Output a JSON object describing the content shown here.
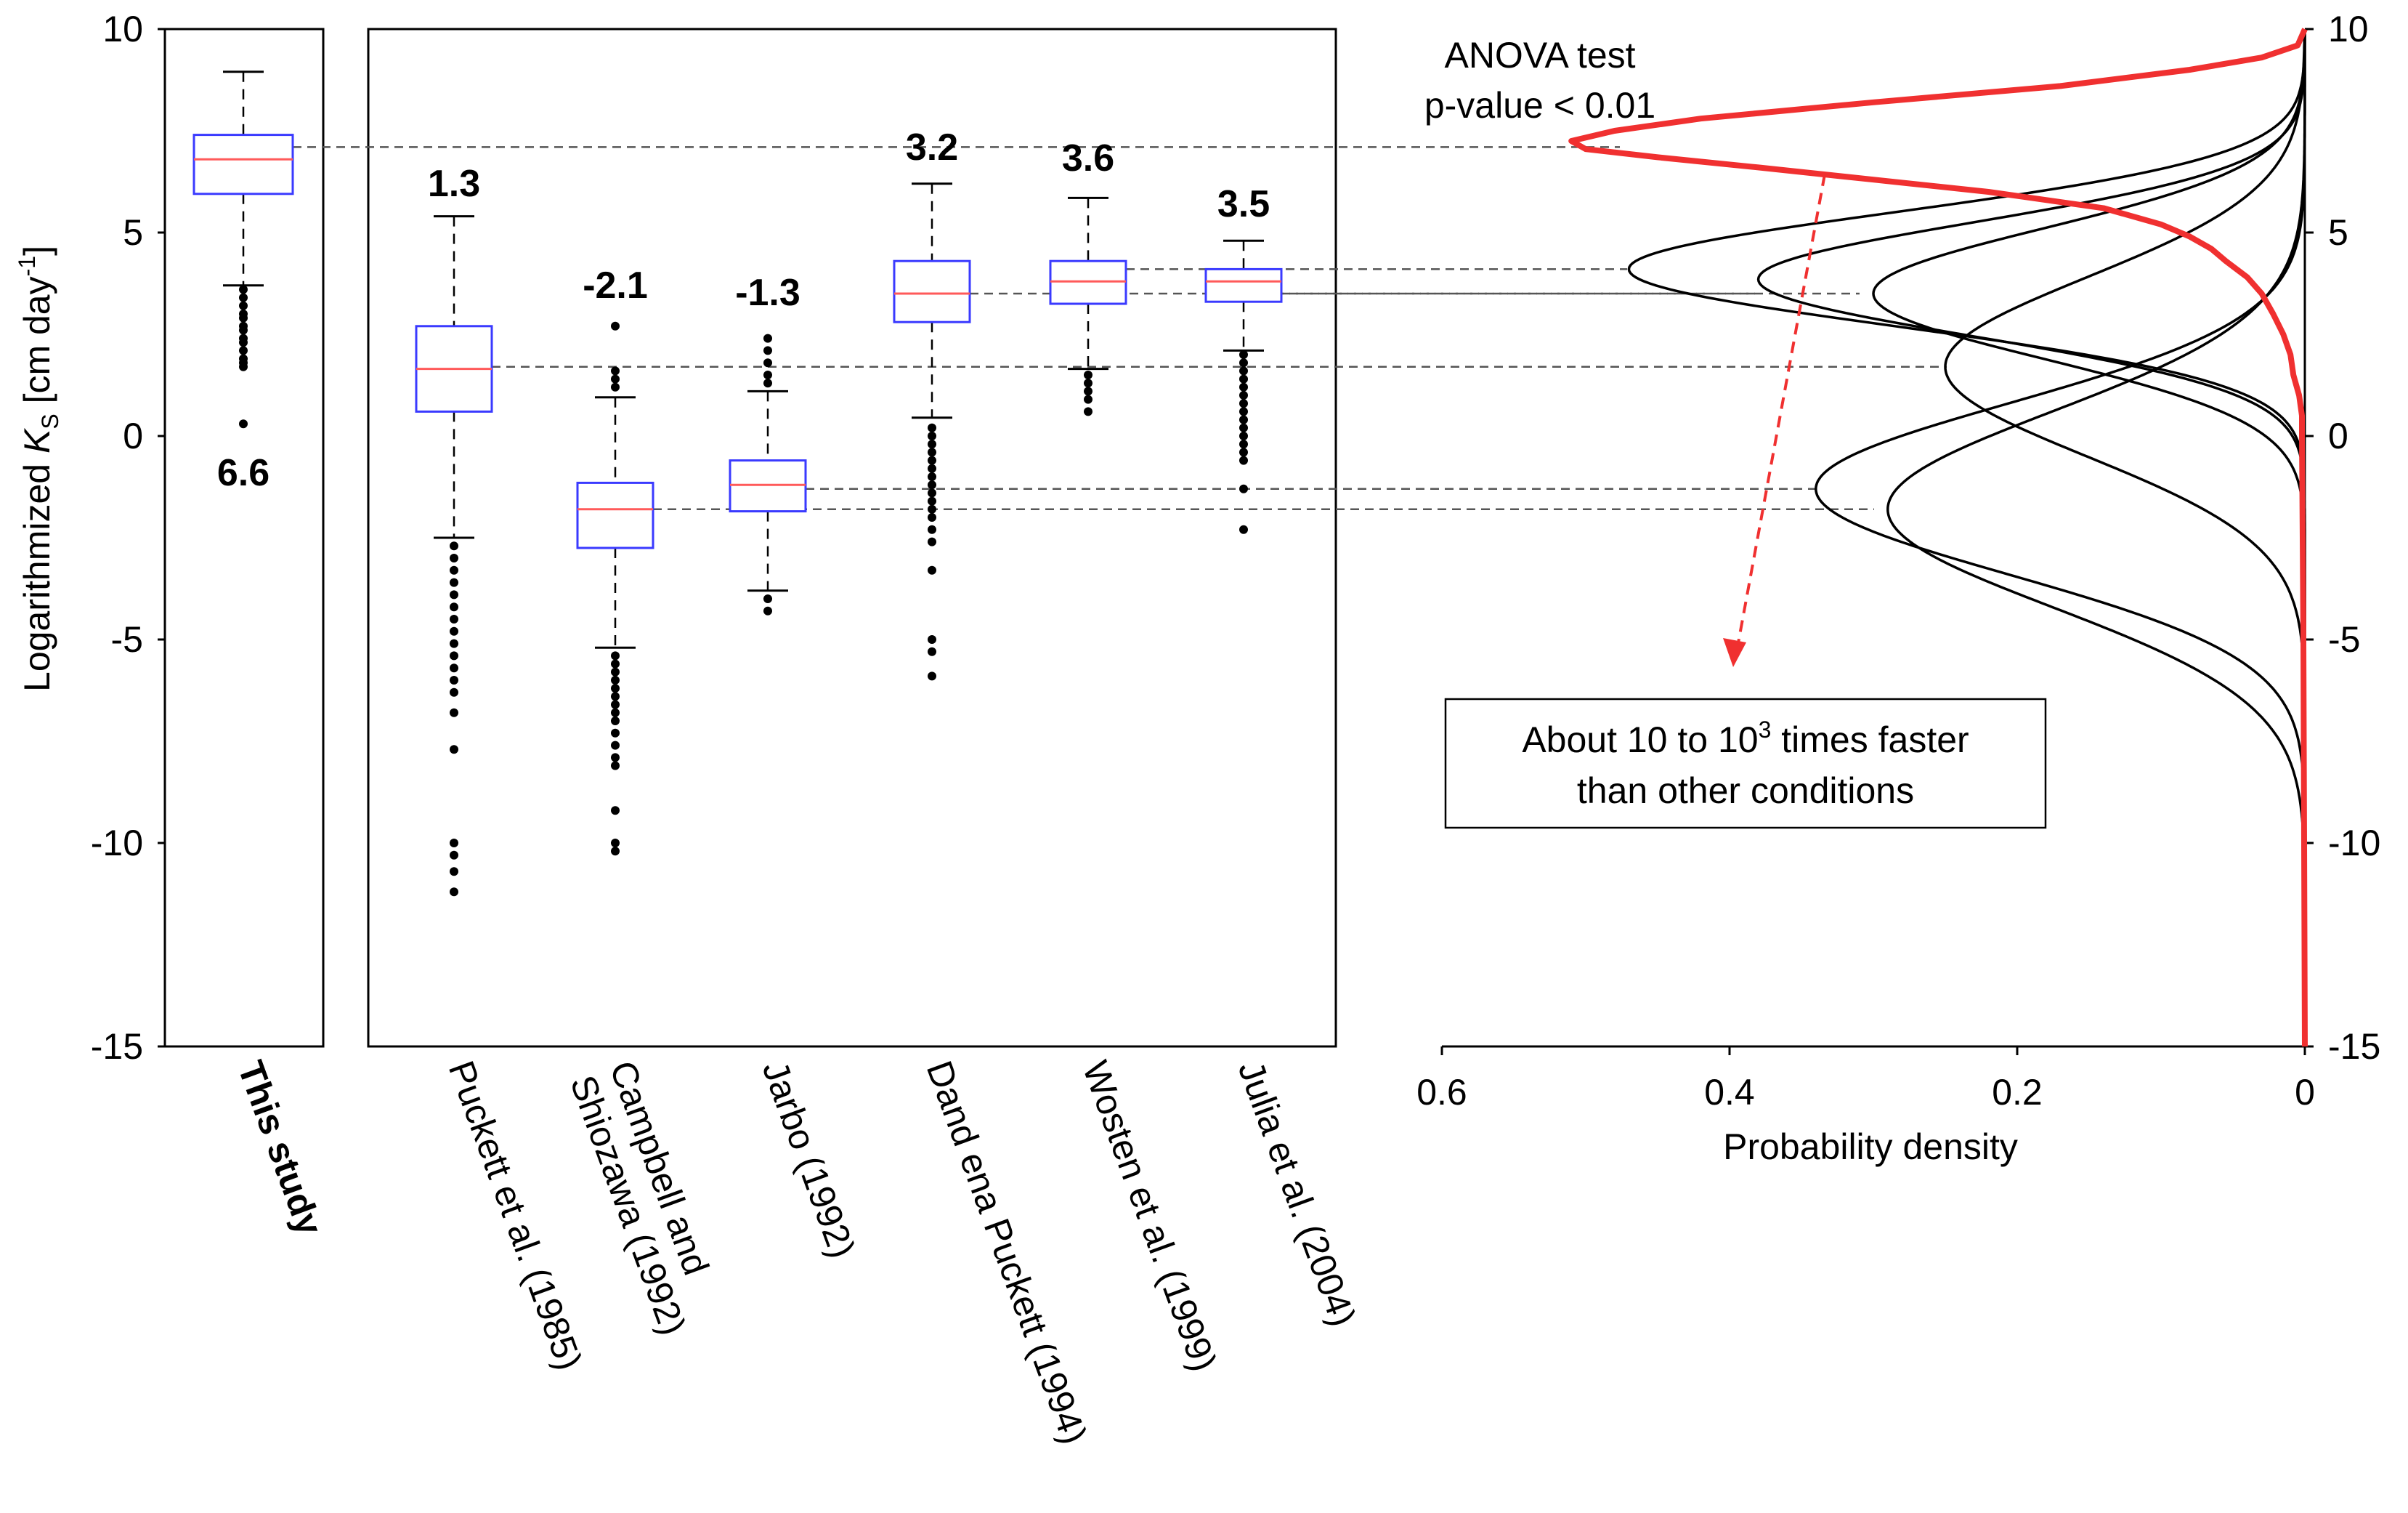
{
  "chart_data": [
    {
      "type": "box",
      "panel": "this-study",
      "ylabel_prefix": "Logarithmized ",
      "ylabel_var": "K",
      "ylabel_sub": "S",
      "ylabel_unit": " [cm day",
      "ylabel_exp": "-1",
      "ylabel_close": "]",
      "ylim": [
        -15,
        10
      ],
      "yticks": [
        "10",
        "5",
        "0",
        "-5",
        "-10",
        "-15"
      ],
      "ytick_values": [
        10,
        5,
        0,
        -5,
        -10,
        -15
      ],
      "grid": false,
      "boxes": [
        {
          "label": "This study",
          "bold": true,
          "mean_label": "6.6",
          "median": 6.8,
          "q1": 5.95,
          "q3": 7.4,
          "whisker_low": 3.7,
          "whisker_high": 8.95,
          "outliers": [
            3.6,
            3.4,
            3.2,
            3.0,
            2.9,
            2.7,
            2.6,
            2.4,
            2.3,
            2.1,
            1.9,
            1.8,
            1.7,
            0.3
          ]
        }
      ]
    },
    {
      "type": "box",
      "panel": "literature",
      "ylim": [
        -15,
        10
      ],
      "boxes": [
        {
          "label": "Puckett et al. (1985)",
          "mean_label": "1.3",
          "median": 1.65,
          "q1": 0.6,
          "q3": 2.7,
          "whisker_low": -2.5,
          "whisker_high": 5.4,
          "outliers": [
            -2.7,
            -3.0,
            -3.3,
            -3.6,
            -3.9,
            -4.2,
            -4.5,
            -4.8,
            -5.1,
            -5.4,
            -5.7,
            -6.0,
            -6.3,
            -6.8,
            -7.7,
            -10.0,
            -10.3,
            -10.7,
            -11.2
          ]
        },
        {
          "label_lines": [
            "Campbell and",
            "Shiozawa (1992)"
          ],
          "label": "Campbell and Shiozawa (1992)",
          "mean_label": "-2.1",
          "median": -1.8,
          "q1": -2.75,
          "q3": -1.15,
          "whisker_low": -5.2,
          "whisker_high": 0.95,
          "outliers": [
            2.7,
            1.6,
            1.4,
            1.2,
            -5.4,
            -5.6,
            -5.8,
            -6.0,
            -6.2,
            -6.4,
            -6.6,
            -6.8,
            -7.0,
            -7.3,
            -7.6,
            -7.9,
            -8.1,
            -9.2,
            -10.0,
            -10.2
          ]
        },
        {
          "label": "Jarbo (1992)",
          "mean_label": "-1.3",
          "median": -1.2,
          "q1": -1.85,
          "q3": -0.6,
          "whisker_low": -3.8,
          "whisker_high": 1.1,
          "outliers": [
            2.4,
            2.1,
            1.8,
            1.5,
            1.3,
            -4.0,
            -4.3
          ]
        },
        {
          "label": "Dand ena Puckett (1994)",
          "mean_label": "3.2",
          "median": 3.5,
          "q1": 2.8,
          "q3": 4.3,
          "whisker_low": 0.45,
          "whisker_high": 6.2,
          "outliers": [
            0.2,
            0.0,
            -0.2,
            -0.4,
            -0.6,
            -0.8,
            -1.0,
            -1.2,
            -1.4,
            -1.6,
            -1.8,
            -2.0,
            -2.3,
            -2.6,
            -3.3,
            -5.0,
            -5.3,
            -5.9
          ]
        },
        {
          "label": "Wosten et al. (1999)",
          "mean_label": "3.6",
          "median": 3.8,
          "q1": 3.25,
          "q3": 4.3,
          "whisker_low": 1.65,
          "whisker_high": 5.85,
          "outliers": [
            1.5,
            1.3,
            1.1,
            0.9,
            0.6
          ]
        },
        {
          "label": "Julia et al. (2004)",
          "mean_label": "3.5",
          "median": 3.8,
          "q1": 3.3,
          "q3": 4.1,
          "whisker_low": 2.1,
          "whisker_high": 4.8,
          "outliers": [
            2.0,
            1.8,
            1.6,
            1.4,
            1.2,
            1.0,
            0.8,
            0.6,
            0.4,
            0.2,
            0.0,
            -0.2,
            -0.4,
            -0.6,
            -1.3,
            -2.3
          ]
        }
      ]
    },
    {
      "type": "line",
      "panel": "density",
      "xlabel": "Probability density",
      "xlim": [
        0.6,
        0
      ],
      "xticks": [
        "0.6",
        "0.4",
        "0.2",
        "0"
      ],
      "xtick_values": [
        0.6,
        0.4,
        0.2,
        0
      ],
      "ylim": [
        -15,
        10
      ],
      "yticks": [
        "10",
        "5",
        "0",
        "-5",
        "-10",
        "-15"
      ],
      "ytick_values": [
        10,
        5,
        0,
        -5,
        -10,
        -15
      ],
      "series_color": "#000000",
      "highlight_color": "#f03030",
      "series": [
        {
          "mean": 4.1,
          "peak": 0.47,
          "sd": 1.4
        },
        {
          "mean": 3.85,
          "peak": 0.38,
          "sd": 1.4
        },
        {
          "mean": 3.5,
          "peak": 0.3,
          "sd": 1.6
        },
        {
          "mean": 1.7,
          "peak": 0.25,
          "sd": 2.2
        },
        {
          "mean": -1.3,
          "peak": 0.34,
          "sd": 2.1
        },
        {
          "mean": -1.8,
          "peak": 0.29,
          "sd": 2.4
        }
      ],
      "highlight": {
        "points": [
          [
            10,
            0.0
          ],
          [
            9.6,
            0.005
          ],
          [
            9.3,
            0.03
          ],
          [
            9.0,
            0.08
          ],
          [
            8.6,
            0.17
          ],
          [
            8.2,
            0.3
          ],
          [
            7.8,
            0.42
          ],
          [
            7.5,
            0.48
          ],
          [
            7.25,
            0.51
          ],
          [
            7.05,
            0.5
          ],
          [
            6.85,
            0.45
          ],
          [
            6.6,
            0.38
          ],
          [
            6.3,
            0.3
          ],
          [
            6.0,
            0.22
          ],
          [
            5.6,
            0.14
          ],
          [
            5.2,
            0.1
          ],
          [
            4.9,
            0.08
          ],
          [
            4.6,
            0.065
          ],
          [
            4.3,
            0.055
          ],
          [
            3.9,
            0.04
          ],
          [
            3.5,
            0.03
          ],
          [
            3.0,
            0.022
          ],
          [
            2.5,
            0.015
          ],
          [
            2.0,
            0.01
          ],
          [
            1.5,
            0.008
          ],
          [
            1.0,
            0.004
          ],
          [
            0.5,
            0.002
          ],
          [
            0.0,
            0.002
          ],
          [
            -5.0,
            0.001
          ],
          [
            -15.0,
            0.0
          ]
        ]
      },
      "anova_line1": "ANOVA test",
      "anova_line2": "p-value < 0.01",
      "note_line1_prefix": "About 10 to 10",
      "note_line1_exp": "3",
      "note_line1_suffix": " times faster",
      "note_line2": "than other conditions"
    }
  ],
  "colors": {
    "box_edge": "#3a3aff",
    "median": "#ff5a5a",
    "whisker": "#000000",
    "guide": "#555555",
    "arrow": "#f03030"
  }
}
